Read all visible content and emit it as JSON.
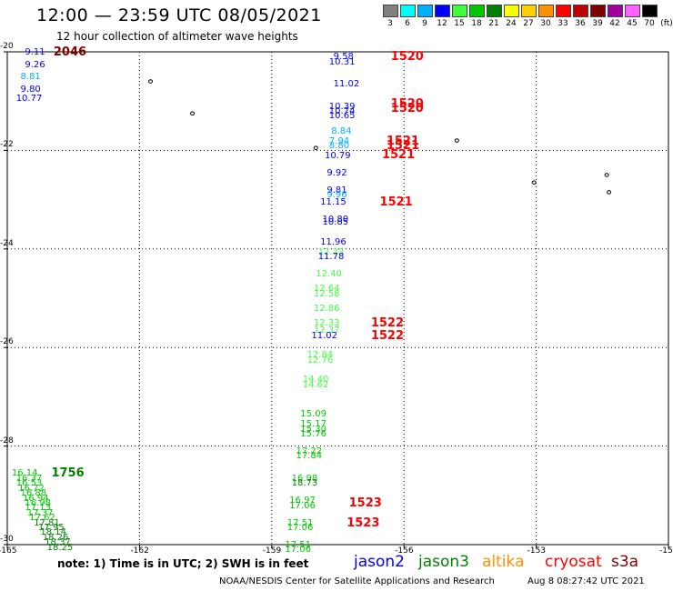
{
  "header": {
    "title": "12:00 — 23:59 UTC 08/05/2021",
    "subtitle": "12 hour collection of altimeter wave heights"
  },
  "legend": {
    "unit": "(ft)",
    "bins": [
      {
        "label": "3",
        "color": "#808080"
      },
      {
        "label": "6",
        "color": "#00ffff"
      },
      {
        "label": "9",
        "color": "#00b0ff"
      },
      {
        "label": "12",
        "color": "#0000ff"
      },
      {
        "label": "15",
        "color": "#40ff40"
      },
      {
        "label": "18",
        "color": "#00c800"
      },
      {
        "label": "21",
        "color": "#008000"
      },
      {
        "label": "24",
        "color": "#ffff00"
      },
      {
        "label": "27",
        "color": "#ffd000"
      },
      {
        "label": "30",
        "color": "#ff9000"
      },
      {
        "label": "33",
        "color": "#ff0000"
      },
      {
        "label": "36",
        "color": "#c00000"
      },
      {
        "label": "39",
        "color": "#800000"
      },
      {
        "label": "42",
        "color": "#a000a0"
      },
      {
        "label": "45",
        "color": "#ff60ff"
      },
      {
        "label": "70",
        "color": "#000000"
      }
    ]
  },
  "map": {
    "lon_range": [
      -165,
      -150
    ],
    "lat_range": [
      -30,
      -20
    ],
    "lon_ticks": [
      "-165",
      "-162",
      "-159",
      "-156",
      "-153",
      "-150"
    ],
    "lat_ticks": [
      "-20",
      "-22",
      "-24",
      "-26",
      "-28",
      "-30"
    ],
    "islands": [
      {
        "lon": -161.75,
        "lat": -20.6
      },
      {
        "lon": -160.8,
        "lat": -21.25
      },
      {
        "lon": -154.8,
        "lat": -21.8
      },
      {
        "lon": -158.0,
        "lat": -21.95
      },
      {
        "lon": -153.05,
        "lat": -22.65
      },
      {
        "lon": -151.4,
        "lat": -22.5
      },
      {
        "lon": -151.35,
        "lat": -22.85
      }
    ],
    "observations": [
      {
        "text": "9.11",
        "lon": -164.6,
        "lat": -20.0,
        "color": "#0000ff"
      },
      {
        "text": "9.26",
        "lon": -164.6,
        "lat": -20.25,
        "color": "#0000ff"
      },
      {
        "text": "8.81",
        "lon": -164.7,
        "lat": -20.5,
        "color": "#00b0ff"
      },
      {
        "text": "9.80",
        "lon": -164.7,
        "lat": -20.75,
        "color": "#0000ff"
      },
      {
        "text": "10.77",
        "lon": -164.8,
        "lat": -20.95,
        "color": "#0000ff"
      },
      {
        "text": "9.58",
        "lon": -157.6,
        "lat": -20.1,
        "color": "#0000ff"
      },
      {
        "text": "10.31",
        "lon": -157.7,
        "lat": -20.2,
        "color": "#0000ff"
      },
      {
        "text": "11.02",
        "lon": -157.6,
        "lat": -20.65,
        "color": "#0000ff"
      },
      {
        "text": "10.39",
        "lon": -157.7,
        "lat": -21.1,
        "color": "#0000ff"
      },
      {
        "text": "10.74",
        "lon": -157.7,
        "lat": -21.2,
        "color": "#0000ff"
      },
      {
        "text": "10.65",
        "lon": -157.7,
        "lat": -21.3,
        "color": "#0000ff"
      },
      {
        "text": "8.84",
        "lon": -157.65,
        "lat": -21.6,
        "color": "#00b0ff"
      },
      {
        "text": "7.94",
        "lon": -157.7,
        "lat": -21.8,
        "color": "#00b0ff"
      },
      {
        "text": "8.80",
        "lon": -157.7,
        "lat": -21.9,
        "color": "#00b0ff"
      },
      {
        "text": "10.79",
        "lon": -157.8,
        "lat": -22.1,
        "color": "#0000ff"
      },
      {
        "text": "9.92",
        "lon": -157.75,
        "lat": -22.45,
        "color": "#0000ff"
      },
      {
        "text": "9.81",
        "lon": -157.75,
        "lat": -22.8,
        "color": "#0000ff"
      },
      {
        "text": "9.96",
        "lon": -157.75,
        "lat": -22.9,
        "color": "#00b0ff"
      },
      {
        "text": "11.15",
        "lon": -157.9,
        "lat": -23.05,
        "color": "#0000ff"
      },
      {
        "text": "10.80",
        "lon": -157.85,
        "lat": -23.4,
        "color": "#0000ff"
      },
      {
        "text": "10.85",
        "lon": -157.85,
        "lat": -23.45,
        "color": "#0000ff"
      },
      {
        "text": "11.96",
        "lon": -157.9,
        "lat": -23.85,
        "color": "#0000ff"
      },
      {
        "text": "12.23",
        "lon": -157.95,
        "lat": -24.05,
        "color": "#40ff40"
      },
      {
        "text": "11.78",
        "lon": -157.95,
        "lat": -24.15,
        "color": "#0000ff"
      },
      {
        "text": "12.40",
        "lon": -158.0,
        "lat": -24.5,
        "color": "#40ff40"
      },
      {
        "text": "12.64",
        "lon": -158.05,
        "lat": -24.8,
        "color": "#40ff40"
      },
      {
        "text": "12.58",
        "lon": -158.05,
        "lat": -24.9,
        "color": "#40ff40"
      },
      {
        "text": "12.86",
        "lon": -158.05,
        "lat": -25.2,
        "color": "#40ff40"
      },
      {
        "text": "12.33",
        "lon": -158.05,
        "lat": -25.5,
        "color": "#40ff40"
      },
      {
        "text": "12.37",
        "lon": -158.05,
        "lat": -25.65,
        "color": "#40ff40"
      },
      {
        "text": "11.02",
        "lon": -158.1,
        "lat": -25.75,
        "color": "#0000ff"
      },
      {
        "text": "12.84",
        "lon": -158.2,
        "lat": -26.15,
        "color": "#40ff40"
      },
      {
        "text": "12.76",
        "lon": -158.2,
        "lat": -26.25,
        "color": "#40ff40"
      },
      {
        "text": "14.40",
        "lon": -158.3,
        "lat": -26.65,
        "color": "#40ff40"
      },
      {
        "text": "14.62",
        "lon": -158.3,
        "lat": -26.75,
        "color": "#40ff40"
      },
      {
        "text": "15.09",
        "lon": -158.35,
        "lat": -27.35,
        "color": "#00c800"
      },
      {
        "text": "15.17",
        "lon": -158.35,
        "lat": -27.55,
        "color": "#00c800"
      },
      {
        "text": "15.30",
        "lon": -158.35,
        "lat": -27.65,
        "color": "#00c800"
      },
      {
        "text": "15.76",
        "lon": -158.35,
        "lat": -27.75,
        "color": "#00c800"
      },
      {
        "text": "17.22",
        "lon": -158.45,
        "lat": -28.1,
        "color": "#00c800"
      },
      {
        "text": "17.84",
        "lon": -158.45,
        "lat": -28.2,
        "color": "#00c800"
      },
      {
        "text": "16.98",
        "lon": -158.55,
        "lat": -28.65,
        "color": "#00c800"
      },
      {
        "text": "18.73",
        "lon": -158.55,
        "lat": -28.75,
        "color": "#008000"
      },
      {
        "text": "16.97",
        "lon": -158.6,
        "lat": -29.1,
        "color": "#00c800"
      },
      {
        "text": "17.06",
        "lon": -158.6,
        "lat": -29.2,
        "color": "#00c800"
      },
      {
        "text": "17.51",
        "lon": -158.65,
        "lat": -29.55,
        "color": "#00c800"
      },
      {
        "text": "17.06",
        "lon": -158.65,
        "lat": -29.65,
        "color": "#00c800"
      },
      {
        "text": "17.51",
        "lon": -158.7,
        "lat": -30.0,
        "color": "#00c800"
      },
      {
        "text": "17.06",
        "lon": -158.7,
        "lat": -30.1,
        "color": "#00c800"
      },
      {
        "text": "16.14",
        "lon": -164.9,
        "lat": -28.55,
        "color": "#00c800"
      },
      {
        "text": "16.37",
        "lon": -164.8,
        "lat": -28.65,
        "color": "#00c800"
      },
      {
        "text": "16.53",
        "lon": -164.8,
        "lat": -28.75,
        "color": "#00c800"
      },
      {
        "text": "16.72",
        "lon": -164.75,
        "lat": -28.85,
        "color": "#00c800"
      },
      {
        "text": "16.88",
        "lon": -164.7,
        "lat": -28.95,
        "color": "#00c800"
      },
      {
        "text": "16.94",
        "lon": -164.65,
        "lat": -29.05,
        "color": "#00c800"
      },
      {
        "text": "16.98",
        "lon": -164.6,
        "lat": -29.15,
        "color": "#00c800"
      },
      {
        "text": "17.13",
        "lon": -164.6,
        "lat": -29.25,
        "color": "#00c800"
      },
      {
        "text": "17.37",
        "lon": -164.55,
        "lat": -29.35,
        "color": "#00c800"
      },
      {
        "text": "17.62",
        "lon": -164.5,
        "lat": -29.45,
        "color": "#00c800"
      },
      {
        "text": "17.81",
        "lon": -164.4,
        "lat": -29.55,
        "color": "#008000"
      },
      {
        "text": "17.95",
        "lon": -164.3,
        "lat": -29.65,
        "color": "#008000"
      },
      {
        "text": "18.14",
        "lon": -164.25,
        "lat": -29.75,
        "color": "#008000"
      },
      {
        "text": "18.26",
        "lon": -164.2,
        "lat": -29.85,
        "color": "#008000"
      },
      {
        "text": "18.37",
        "lon": -164.15,
        "lat": -29.95,
        "color": "#008000"
      },
      {
        "text": "18.25",
        "lon": -164.1,
        "lat": -30.05,
        "color": "#008000"
      }
    ],
    "time_labels": [
      {
        "text": "2046",
        "lon": -163.95,
        "lat": -20.0,
        "color": "#800000"
      },
      {
        "text": "1520",
        "lon": -156.3,
        "lat": -20.1,
        "color": "#ff0000"
      },
      {
        "text": "1520",
        "lon": -156.3,
        "lat": -21.05,
        "color": "#ff0000"
      },
      {
        "text": "1520",
        "lon": -156.3,
        "lat": -21.15,
        "color": "#ff0000"
      },
      {
        "text": "1521",
        "lon": -156.4,
        "lat": -21.8,
        "color": "#ff0000"
      },
      {
        "text": "1521",
        "lon": -156.4,
        "lat": -21.9,
        "color": "#ff0000"
      },
      {
        "text": "1521",
        "lon": -156.5,
        "lat": -22.08,
        "color": "#ff0000"
      },
      {
        "text": "1521",
        "lon": -156.55,
        "lat": -23.05,
        "color": "#ff0000"
      },
      {
        "text": "1522",
        "lon": -156.75,
        "lat": -25.5,
        "color": "#ff0000"
      },
      {
        "text": "1522",
        "lon": -156.75,
        "lat": -25.75,
        "color": "#ff0000"
      },
      {
        "text": "1523",
        "lon": -157.25,
        "lat": -29.15,
        "color": "#ff0000"
      },
      {
        "text": "1523",
        "lon": -157.3,
        "lat": -29.55,
        "color": "#ff0000"
      },
      {
        "text": "1756",
        "lon": -164.0,
        "lat": -28.55,
        "color": "#008000"
      }
    ]
  },
  "footer": {
    "note": "note:  1) Time is in UTC;  2) SWH is in feet",
    "satellites": [
      {
        "name": "jason2",
        "color": "#0000ff"
      },
      {
        "name": "jason3",
        "color": "#008000"
      },
      {
        "name": "altika",
        "color": "#ff9000"
      },
      {
        "name": "cryosat",
        "color": "#ff0000"
      },
      {
        "name": "s3a",
        "color": "#800000"
      }
    ],
    "credit": "NOAA/NESDIS Center for Satellite Applications and Research",
    "timestamp": "Aug  8 08:27:42 UTC 2021"
  }
}
